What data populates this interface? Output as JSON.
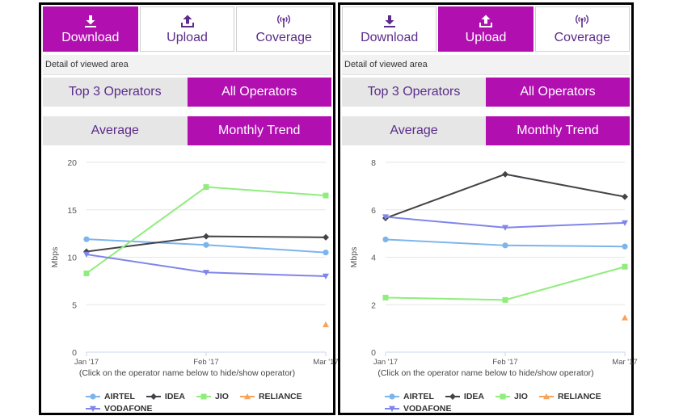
{
  "panels": [
    {
      "tabs": [
        {
          "label": "Download",
          "icon": "download-icon",
          "active": true
        },
        {
          "label": "Upload",
          "icon": "upload-icon",
          "active": false
        },
        {
          "label": "Coverage",
          "icon": "signal-icon",
          "active": false
        }
      ],
      "detail_label": "Detail of viewed area",
      "operator_filter": [
        {
          "label": "Top 3 Operators",
          "active": false
        },
        {
          "label": "All Operators",
          "active": true
        }
      ],
      "view_mode": [
        {
          "label": "Average",
          "active": false
        },
        {
          "label": "Monthly Trend",
          "active": true
        }
      ],
      "hint": "(Click on the operator name below to hide/show operator)",
      "chart_data": {
        "type": "line",
        "ylabel": "Mbps",
        "categories": [
          "Jan '17",
          "Feb '17",
          "Mar '17"
        ],
        "ylim": [
          0,
          20
        ],
        "yticks": [
          0,
          5,
          10,
          15,
          20
        ],
        "series": [
          {
            "name": "AIRTEL",
            "color": "#7cb5ec",
            "marker": "circle",
            "values": [
              11.9,
              11.3,
              10.5
            ]
          },
          {
            "name": "IDEA",
            "color": "#434348",
            "marker": "diamond",
            "values": [
              10.6,
              12.2,
              12.1
            ]
          },
          {
            "name": "JIO",
            "color": "#90ed7d",
            "marker": "square",
            "values": [
              8.3,
              17.4,
              16.5
            ]
          },
          {
            "name": "RELIANCE",
            "color": "#f7a35c",
            "marker": "triangle",
            "values": [
              null,
              null,
              2.9
            ]
          },
          {
            "name": "VODAFONE",
            "color": "#8085e9",
            "marker": "triangle-down",
            "values": [
              10.3,
              8.4,
              8.0
            ]
          }
        ]
      }
    },
    {
      "tabs": [
        {
          "label": "Download",
          "icon": "download-icon",
          "active": false
        },
        {
          "label": "Upload",
          "icon": "upload-icon",
          "active": true
        },
        {
          "label": "Coverage",
          "icon": "signal-icon",
          "active": false
        }
      ],
      "detail_label": "Detail of viewed area",
      "operator_filter": [
        {
          "label": "Top 3 Operators",
          "active": false
        },
        {
          "label": "All Operators",
          "active": true
        }
      ],
      "view_mode": [
        {
          "label": "Average",
          "active": false
        },
        {
          "label": "Monthly Trend",
          "active": true
        }
      ],
      "hint": "(Click on the operator name below to hide/show operator)",
      "chart_data": {
        "type": "line",
        "ylabel": "Mbps",
        "categories": [
          "Jan '17",
          "Feb '17",
          "Mar '17"
        ],
        "ylim": [
          0,
          8
        ],
        "yticks": [
          0,
          2,
          4,
          6,
          8
        ],
        "series": [
          {
            "name": "AIRTEL",
            "color": "#7cb5ec",
            "marker": "circle",
            "values": [
              4.75,
              4.5,
              4.45
            ]
          },
          {
            "name": "IDEA",
            "color": "#434348",
            "marker": "diamond",
            "values": [
              5.65,
              7.5,
              6.55
            ]
          },
          {
            "name": "JIO",
            "color": "#90ed7d",
            "marker": "square",
            "values": [
              2.3,
              2.2,
              3.6
            ]
          },
          {
            "name": "RELIANCE",
            "color": "#f7a35c",
            "marker": "triangle",
            "values": [
              null,
              null,
              1.45
            ]
          },
          {
            "name": "VODAFONE",
            "color": "#8085e9",
            "marker": "triangle-down",
            "values": [
              5.7,
              5.25,
              5.45
            ]
          }
        ]
      }
    }
  ]
}
